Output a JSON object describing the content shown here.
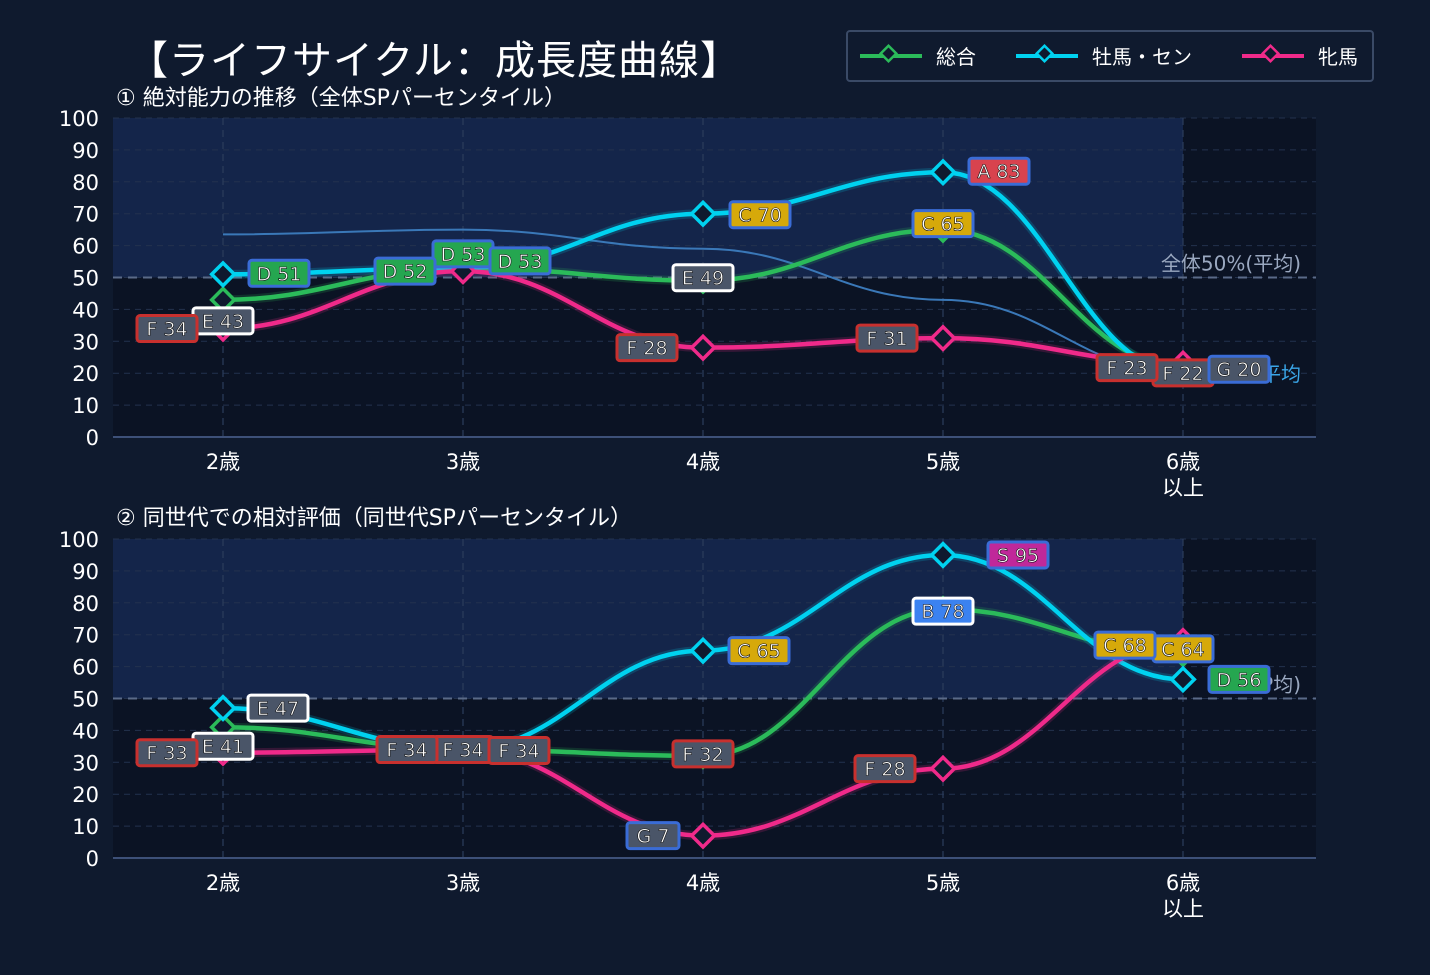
{
  "title": "【ライフサイクル：成長度曲線】",
  "legend": [
    {
      "name": "総合",
      "color": "#2bbb5a"
    },
    {
      "name": "牡馬・セン",
      "color": "#00d2f0"
    },
    {
      "name": "牝馬",
      "color": "#f02a8a"
    }
  ],
  "colors": {
    "background": "#0f1a2e",
    "plot_bg": "#0b1324",
    "band": "#14254a",
    "ref": "#5a6a88"
  },
  "chart_data": [
    {
      "type": "line",
      "subtitle": "① 絶対能力の推移（全体SPパーセンタイル）",
      "categories": [
        "2歳",
        "3歳",
        "4歳",
        "5歳",
        "6歳\n以上"
      ],
      "ylim": [
        0,
        100
      ],
      "yticks": [
        0,
        10,
        20,
        30,
        40,
        50,
        60,
        70,
        80,
        90,
        100
      ],
      "series": [
        {
          "name": "総合",
          "values": [
            43,
            53,
            49,
            65,
            22
          ],
          "labels": [
            "E 43",
            "D 53",
            "E 49",
            "C 65",
            "F 22"
          ]
        },
        {
          "name": "牡馬・セン",
          "values": [
            51,
            53,
            70,
            83,
            20
          ],
          "labels": [
            "D 51",
            "D 53",
            "C 70",
            "A 83",
            "G 20"
          ]
        },
        {
          "name": "牝馬",
          "values": [
            34,
            52,
            28,
            31,
            23
          ],
          "labels": [
            "F 34",
            "D 52",
            "F 28",
            "F 31",
            "F 23"
          ]
        }
      ],
      "background_curve": [
        63.5,
        65,
        59,
        43,
        20
      ],
      "reference_line": {
        "value": 50,
        "label": "全体50%(平均)"
      },
      "secondary_label": "平均",
      "grid": true
    },
    {
      "type": "line",
      "subtitle": "② 同世代での相対評価（同世代SPパーセンタイル）",
      "categories": [
        "2歳",
        "3歳",
        "4歳",
        "5歳",
        "6歳\n以上"
      ],
      "ylim": [
        0,
        100
      ],
      "yticks": [
        0,
        10,
        20,
        30,
        40,
        50,
        60,
        70,
        80,
        90,
        100
      ],
      "series": [
        {
          "name": "総合",
          "values": [
            41,
            34,
            32,
            78,
            64
          ],
          "labels": [
            "E 41",
            "F 34",
            "F 32",
            "B 78",
            "C 64"
          ]
        },
        {
          "name": "牡馬・セン",
          "values": [
            47,
            34,
            65,
            95,
            56
          ],
          "labels": [
            "E 47",
            "F 34",
            "C 65",
            "S 95",
            "D 56"
          ]
        },
        {
          "name": "牝馬",
          "values": [
            33,
            34,
            7,
            28,
            68
          ],
          "labels": [
            "F 33",
            "F 34",
            "G 7",
            "F 28",
            "C 68"
          ]
        }
      ],
      "reference_line": {
        "value": 50,
        "label": "SP均)"
      },
      "grid": true
    }
  ]
}
